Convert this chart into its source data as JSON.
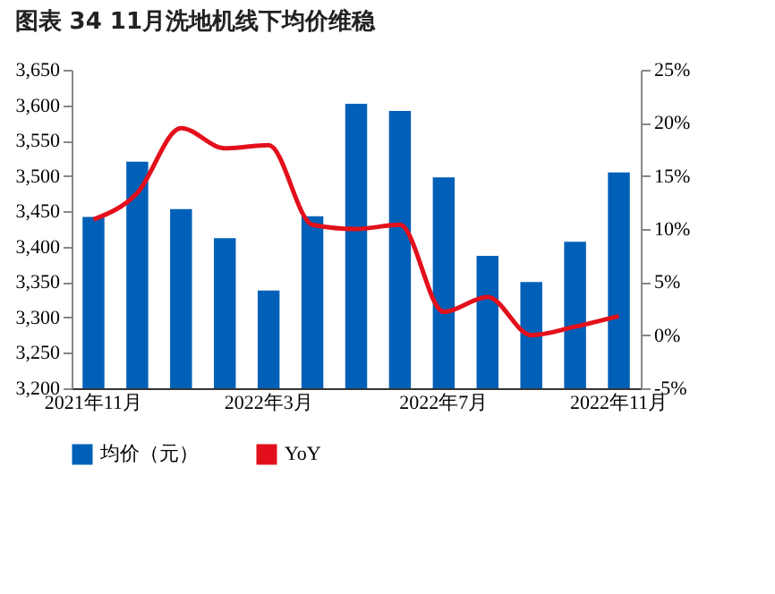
{
  "chart_data": {
    "type": "bar",
    "title": "图表 34   11月洗地机线下均价维稳",
    "categories": [
      "2021年11月",
      null,
      null,
      null,
      "2022年3月",
      null,
      null,
      null,
      "2022年7月",
      null,
      null,
      null,
      "2022年11月"
    ],
    "series": [
      {
        "name": "均价（元）",
        "color": "#0060b8",
        "values": [
          3442,
          3520,
          3453,
          3412,
          3338,
          3443,
          3602,
          3592,
          3498,
          3387,
          3350,
          3407,
          3505
        ]
      },
      {
        "name": "YoY",
        "type": "line",
        "axis": "y2",
        "color": "#e3101c",
        "values": [
          10.9,
          13.4,
          19.5,
          17.6,
          17.9,
          10.4,
          10.0,
          10.4,
          2.2,
          3.6,
          0.0,
          0.8,
          1.8
        ]
      }
    ],
    "ylim": [
      3200,
      3650
    ],
    "yticks": [
      {
        "value": 3200,
        "label": "3,200"
      },
      {
        "value": 3250,
        "label": "3,250"
      },
      {
        "value": 3300,
        "label": "3,300"
      },
      {
        "value": 3350,
        "label": "3,350"
      },
      {
        "value": 3400,
        "label": "3,400"
      },
      {
        "value": 3450,
        "label": "3,450"
      },
      {
        "value": 3500,
        "label": "3,500"
      },
      {
        "value": 3550,
        "label": "3,550"
      },
      {
        "value": 3600,
        "label": "3,600"
      },
      {
        "value": 3650,
        "label": "3,650"
      }
    ],
    "y2lim": [
      -5,
      25
    ],
    "y2ticks": [
      {
        "value": -5,
        "label": "-5%"
      },
      {
        "value": 0,
        "label": "0%"
      },
      {
        "value": 5,
        "label": "5%"
      },
      {
        "value": 10,
        "label": "10%"
      },
      {
        "value": 15,
        "label": "15%"
      },
      {
        "value": 20,
        "label": "20%"
      },
      {
        "value": 25,
        "label": "25%"
      }
    ],
    "legend": "bottom",
    "grid": false
  }
}
